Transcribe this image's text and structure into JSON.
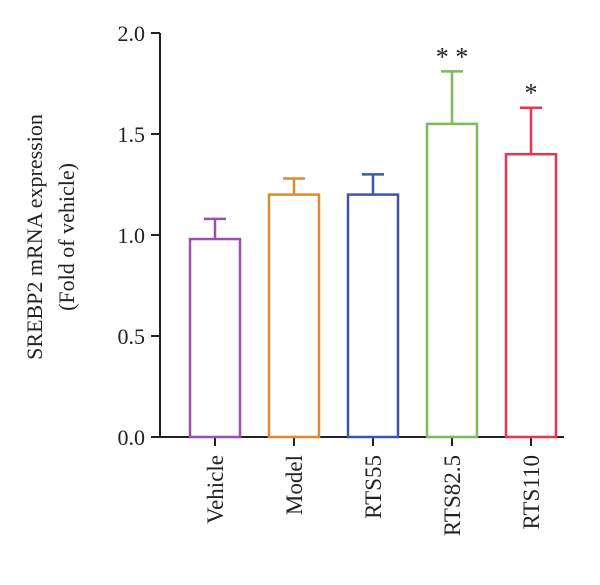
{
  "chart_data": {
    "type": "bar",
    "title": "",
    "xlabel": "",
    "ylabel_lines": [
      "SREBP2 mRNA expression",
      "(Fold of vehicle)"
    ],
    "ylim": [
      0,
      2.0
    ],
    "yticks": [
      0.0,
      0.5,
      1.0,
      1.5,
      2.0
    ],
    "ytick_labels": [
      "0.0",
      "0.5",
      "1.0",
      "1.5",
      "2.0"
    ],
    "categories": [
      "Vehicle",
      "Model",
      "RTS55",
      "RTS82.5",
      "RTS110"
    ],
    "values": [
      0.98,
      1.2,
      1.2,
      1.55,
      1.4
    ],
    "error_upper": [
      0.1,
      0.08,
      0.1,
      0.26,
      0.23
    ],
    "significance": [
      "",
      "",
      "",
      "**",
      "*"
    ],
    "colors": [
      "#9b4fb0",
      "#e08a2e",
      "#3f56a8",
      "#7cba5a",
      "#e8344e"
    ],
    "bar_fill": "#ffffff",
    "grid": false,
    "legend": "none"
  }
}
